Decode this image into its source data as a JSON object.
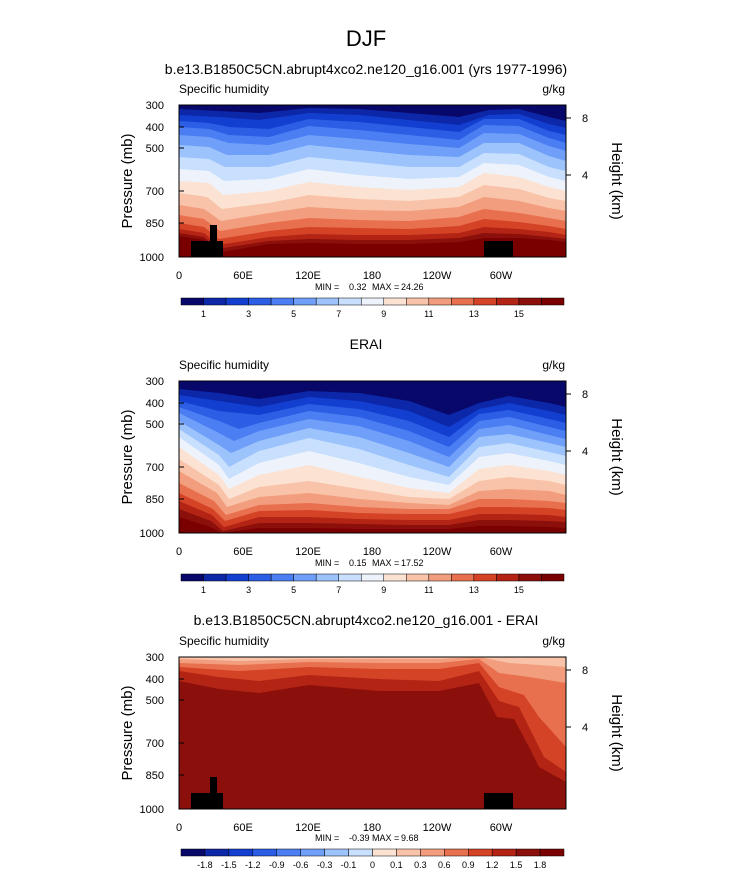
{
  "figure": {
    "title": "DJF"
  },
  "colors": {
    "abs_scale": [
      "#08086b",
      "#0c27a8",
      "#123fd0",
      "#2b5de5",
      "#4a7ef2",
      "#6f9ff8",
      "#9cc3fb",
      "#c8dffd",
      "#eef3fb",
      "#fbe2d2",
      "#f8c3a8",
      "#f29d7d",
      "#e8704f",
      "#d54327",
      "#b42415",
      "#8b0f0b",
      "#7a0000"
    ],
    "diff_scale": [
      "#08086b",
      "#0c27a8",
      "#123fd0",
      "#2b5de5",
      "#4a7ef2",
      "#6f9ff8",
      "#9cc3fb",
      "#c8dffd",
      "#eef3fb",
      "#fbe2d2",
      "#f8c3a8",
      "#f29d7d",
      "#e8704f",
      "#d54327",
      "#b42415",
      "#8b0f0b",
      "#7a0000"
    ],
    "topography": "#000000"
  },
  "chart_data": [
    {
      "type": "heatmap",
      "title": "b.e13.B1850C5CN.abrupt4xco2.ne120_g16.001 (yrs 1977-1996)",
      "left_label": "Specific humidity",
      "right_label": "g/kg",
      "ylabel": "Pressure (mb)",
      "y2label": "Height (km)",
      "ylim": [
        1000,
        300
      ],
      "y_ticks": [
        "300",
        "400",
        "500",
        "700",
        "850",
        "1000"
      ],
      "y2_ticks": [
        "8",
        "4"
      ],
      "x_ticks": [
        "0",
        "60E",
        "120E",
        "180",
        "120W",
        "60W"
      ],
      "min_label": "MIN =",
      "min": "0.32",
      "max_label": "MAX =",
      "max": "24.26",
      "colorbar_labels": [
        "1",
        "3",
        "5",
        "7",
        "9",
        "11",
        "13",
        "15"
      ],
      "levels": [
        1,
        2,
        3,
        4,
        5,
        6,
        7,
        8,
        9,
        10,
        11,
        12,
        13,
        14,
        15,
        16
      ]
    },
    {
      "type": "heatmap",
      "title": "ERAI",
      "left_label": "Specific humidity",
      "right_label": "g/kg",
      "ylabel": "Pressure (mb)",
      "y2label": "Height (km)",
      "ylim": [
        1000,
        300
      ],
      "y_ticks": [
        "300",
        "400",
        "500",
        "700",
        "850",
        "1000"
      ],
      "y2_ticks": [
        "8",
        "4"
      ],
      "x_ticks": [
        "0",
        "60E",
        "120E",
        "180",
        "120W",
        "60W"
      ],
      "min_label": "MIN =",
      "min": "0.15",
      "max_label": "MAX =",
      "max": "17.52",
      "colorbar_labels": [
        "1",
        "3",
        "5",
        "7",
        "9",
        "11",
        "13",
        "15"
      ],
      "levels": [
        1,
        2,
        3,
        4,
        5,
        6,
        7,
        8,
        9,
        10,
        11,
        12,
        13,
        14,
        15,
        16
      ]
    },
    {
      "type": "heatmap",
      "title": "b.e13.B1850C5CN.abrupt4xco2.ne120_g16.001 - ERAI",
      "left_label": "Specific humidity",
      "right_label": "g/kg",
      "ylabel": "Pressure (mb)",
      "y2label": "Height (km)",
      "ylim": [
        1000,
        300
      ],
      "y_ticks": [
        "300",
        "400",
        "500",
        "700",
        "850",
        "1000"
      ],
      "y2_ticks": [
        "8",
        "4"
      ],
      "x_ticks": [
        "0",
        "60E",
        "120E",
        "180",
        "120W",
        "60W"
      ],
      "min_label": "MIN =",
      "min": "-0.39",
      "max_label": "MAX =",
      "max": "9.68",
      "colorbar_labels": [
        "-1.8",
        "-1.5",
        "-1.2",
        "-0.9",
        "-0.6",
        "-0.3",
        "-0.1",
        "0",
        "0.1",
        "0.3",
        "0.6",
        "0.9",
        "1.2",
        "1.5",
        "1.8"
      ],
      "levels": [
        -1.8,
        -1.5,
        -1.2,
        -0.9,
        -0.6,
        -0.3,
        -0.1,
        0,
        0.1,
        0.3,
        0.6,
        0.9,
        1.2,
        1.5,
        1.8
      ]
    }
  ]
}
